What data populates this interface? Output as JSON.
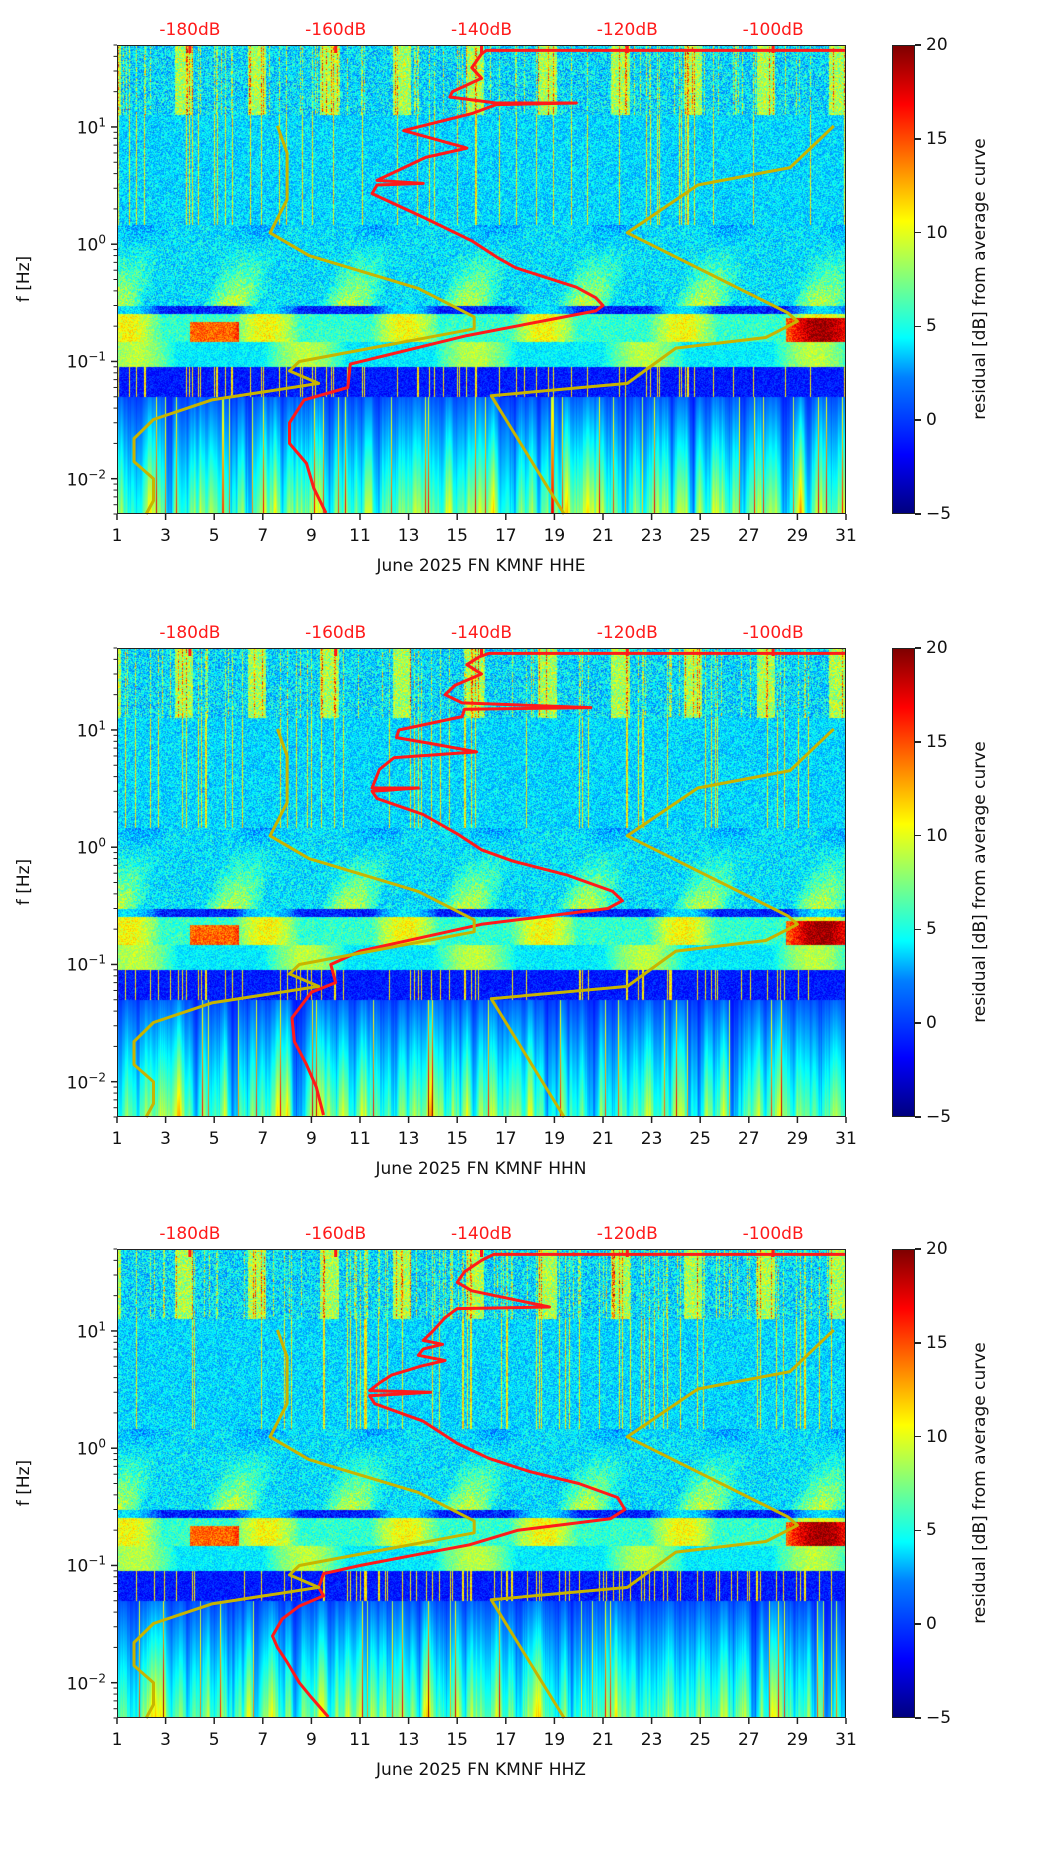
{
  "colors": {
    "avg_curve": "#ff1a1a",
    "noise_model": "#c8b400",
    "db_label": "#ff1a1a",
    "axis": "#222222"
  },
  "chart_data": [
    {
      "type": "heatmap",
      "title": "",
      "xlabel": "June 2025 FN KMNF  HHE",
      "ylabel": "f [Hz]",
      "xlim": [
        1,
        31
      ],
      "ylim": [
        0.005,
        50
      ],
      "yscale": "log",
      "x_ticks": [
        "1",
        "3",
        "5",
        "7",
        "9",
        "11",
        "13",
        "15",
        "17",
        "19",
        "21",
        "23",
        "25",
        "27",
        "29",
        "31"
      ],
      "y_ticks": [
        {
          "base": "10",
          "exp": "1",
          "value": 10
        },
        {
          "base": "10",
          "exp": "0",
          "value": 1
        },
        {
          "base": "10",
          "exp": "−1",
          "value": 0.1
        },
        {
          "base": "10",
          "exp": "−2",
          "value": 0.01
        }
      ],
      "top_axis": {
        "labels": [
          "-180dB",
          "-160dB",
          "-140dB",
          "-120dB",
          "-100dB"
        ],
        "positions_day": [
          4,
          10,
          16,
          22,
          28
        ]
      },
      "colorbar": {
        "label": "residual [dB] from average curve",
        "range": [
          -5,
          20
        ],
        "ticks": [
          "−5",
          "0",
          "5",
          "10",
          "15",
          "20"
        ],
        "colormap": "jet"
      },
      "series": [
        {
          "name": "average curve",
          "points": [
            [
              31,
              45
            ],
            [
              16.2,
              45
            ],
            [
              16.0,
              42
            ],
            [
              15.6,
              32
            ],
            [
              16.0,
              26
            ],
            [
              14.8,
              20
            ],
            [
              14.7,
              18
            ],
            [
              16.6,
              16
            ],
            [
              19.9,
              16
            ],
            [
              16.6,
              15.5
            ],
            [
              15.6,
              13
            ],
            [
              12.8,
              9.3
            ],
            [
              15.4,
              6.6
            ],
            [
              13.7,
              5.5
            ],
            [
              11.7,
              3.5
            ],
            [
              13.6,
              3.3
            ],
            [
              11.7,
              3.2
            ],
            [
              11.5,
              2.7
            ],
            [
              13.7,
              1.66
            ],
            [
              15.6,
              1.07
            ],
            [
              16.7,
              0.76
            ],
            [
              17.4,
              0.63
            ],
            [
              19.9,
              0.43
            ],
            [
              20.7,
              0.35
            ],
            [
              21.0,
              0.3
            ],
            [
              20.7,
              0.27
            ],
            [
              15.4,
              0.166
            ],
            [
              10.6,
              0.095
            ],
            [
              10.5,
              0.06
            ],
            [
              8.7,
              0.047
            ],
            [
              8.1,
              0.03
            ],
            [
              8.1,
              0.02
            ],
            [
              8.8,
              0.0135
            ],
            [
              9.1,
              0.0083
            ],
            [
              9.6,
              0.0051
            ]
          ]
        },
        {
          "name": "low noise model",
          "points": [
            [
              7.6,
              10.2
            ],
            [
              8.0,
              6.0
            ],
            [
              8.0,
              2.4
            ],
            [
              7.3,
              1.25
            ],
            [
              8.9,
              0.8
            ],
            [
              13.4,
              0.42
            ],
            [
              15.7,
              0.24
            ],
            [
              15.7,
              0.19
            ],
            [
              8.5,
              0.1
            ],
            [
              8.1,
              0.083
            ],
            [
              9.3,
              0.065
            ],
            [
              4.9,
              0.047
            ],
            [
              2.5,
              0.032
            ],
            [
              1.7,
              0.022
            ],
            [
              1.7,
              0.014
            ],
            [
              2.5,
              0.01
            ],
            [
              2.5,
              0.0065
            ],
            [
              2.2,
              0.005
            ]
          ]
        },
        {
          "name": "high noise model",
          "points": [
            [
              30.5,
              10.2
            ],
            [
              28.7,
              4.5
            ],
            [
              24.9,
              3.2
            ],
            [
              22.0,
              1.25
            ],
            [
              28.6,
              0.26
            ],
            [
              29.0,
              0.22
            ],
            [
              27.7,
              0.16
            ],
            [
              24.0,
              0.13
            ],
            [
              22.0,
              0.065
            ],
            [
              16.4,
              0.051
            ],
            [
              19.4,
              0.005
            ]
          ]
        }
      ]
    },
    {
      "type": "heatmap",
      "title": "",
      "xlabel": "June 2025 FN KMNF  HHN",
      "ylabel": "f [Hz]",
      "xlim": [
        1,
        31
      ],
      "ylim": [
        0.005,
        50
      ],
      "yscale": "log",
      "x_ticks": [
        "1",
        "3",
        "5",
        "7",
        "9",
        "11",
        "13",
        "15",
        "17",
        "19",
        "21",
        "23",
        "25",
        "27",
        "29",
        "31"
      ],
      "y_ticks": [
        {
          "base": "10",
          "exp": "1",
          "value": 10
        },
        {
          "base": "10",
          "exp": "0",
          "value": 1
        },
        {
          "base": "10",
          "exp": "−1",
          "value": 0.1
        },
        {
          "base": "10",
          "exp": "−2",
          "value": 0.01
        }
      ],
      "top_axis": {
        "labels": [
          "-180dB",
          "-160dB",
          "-140dB",
          "-120dB",
          "-100dB"
        ],
        "positions_day": [
          4,
          10,
          16,
          22,
          28
        ]
      },
      "colorbar": {
        "label": "residual [dB] from average curve",
        "range": [
          -5,
          20
        ],
        "ticks": [
          "−5",
          "0",
          "5",
          "10",
          "15",
          "20"
        ],
        "colormap": "jet"
      },
      "series": [
        {
          "name": "average curve",
          "points": [
            [
              31,
              45
            ],
            [
              16.3,
              45
            ],
            [
              15.9,
              42
            ],
            [
              15.4,
              36
            ],
            [
              16.0,
              30
            ],
            [
              14.9,
              24
            ],
            [
              14.5,
              20
            ],
            [
              15.2,
              17
            ],
            [
              20.5,
              15.5
            ],
            [
              15.3,
              15
            ],
            [
              15.2,
              13
            ],
            [
              12.6,
              10
            ],
            [
              12.5,
              8.6
            ],
            [
              14.0,
              7.6
            ],
            [
              15.8,
              6.5
            ],
            [
              12.4,
              5.8
            ],
            [
              11.8,
              4.6
            ],
            [
              11.5,
              3.2
            ],
            [
              13.4,
              3.2
            ],
            [
              11.5,
              3.0
            ],
            [
              11.7,
              2.6
            ],
            [
              13.6,
              1.9
            ],
            [
              15.0,
              1.3
            ],
            [
              16.0,
              0.95
            ],
            [
              17.3,
              0.76
            ],
            [
              19.5,
              0.58
            ],
            [
              21.4,
              0.42
            ],
            [
              21.8,
              0.35
            ],
            [
              21.2,
              0.3
            ],
            [
              16.0,
              0.22
            ],
            [
              11.0,
              0.13
            ],
            [
              9.8,
              0.1
            ],
            [
              10.0,
              0.07
            ],
            [
              9.0,
              0.058
            ],
            [
              8.2,
              0.035
            ],
            [
              8.3,
              0.022
            ],
            [
              8.8,
              0.014
            ],
            [
              9.2,
              0.009
            ],
            [
              9.5,
              0.0052
            ]
          ]
        },
        {
          "name": "low noise model",
          "points": [
            [
              7.6,
              10.2
            ],
            [
              8.0,
              6.0
            ],
            [
              8.0,
              2.4
            ],
            [
              7.3,
              1.25
            ],
            [
              8.9,
              0.8
            ],
            [
              13.4,
              0.42
            ],
            [
              15.7,
              0.24
            ],
            [
              15.7,
              0.19
            ],
            [
              8.5,
              0.1
            ],
            [
              8.1,
              0.083
            ],
            [
              9.3,
              0.065
            ],
            [
              4.9,
              0.047
            ],
            [
              2.5,
              0.032
            ],
            [
              1.7,
              0.022
            ],
            [
              1.7,
              0.014
            ],
            [
              2.5,
              0.01
            ],
            [
              2.5,
              0.0065
            ],
            [
              2.2,
              0.005
            ]
          ]
        },
        {
          "name": "high noise model",
          "points": [
            [
              30.5,
              10.2
            ],
            [
              28.7,
              4.5
            ],
            [
              24.9,
              3.2
            ],
            [
              22.0,
              1.25
            ],
            [
              28.6,
              0.26
            ],
            [
              29.0,
              0.22
            ],
            [
              27.7,
              0.16
            ],
            [
              24.0,
              0.13
            ],
            [
              22.0,
              0.065
            ],
            [
              16.4,
              0.051
            ],
            [
              19.4,
              0.005
            ]
          ]
        }
      ]
    },
    {
      "type": "heatmap",
      "title": "",
      "xlabel": "June 2025 FN KMNF  HHZ",
      "ylabel": "f [Hz]",
      "xlim": [
        1,
        31
      ],
      "ylim": [
        0.005,
        50
      ],
      "yscale": "log",
      "x_ticks": [
        "1",
        "3",
        "5",
        "7",
        "9",
        "11",
        "13",
        "15",
        "17",
        "19",
        "21",
        "23",
        "25",
        "27",
        "29",
        "31"
      ],
      "y_ticks": [
        {
          "base": "10",
          "exp": "1",
          "value": 10
        },
        {
          "base": "10",
          "exp": "0",
          "value": 1
        },
        {
          "base": "10",
          "exp": "−1",
          "value": 0.1
        },
        {
          "base": "10",
          "exp": "−2",
          "value": 0.01
        }
      ],
      "top_axis": {
        "labels": [
          "-180dB",
          "-160dB",
          "-140dB",
          "-120dB",
          "-100dB"
        ],
        "positions_day": [
          4,
          10,
          16,
          22,
          28
        ]
      },
      "colorbar": {
        "label": "residual [dB] from average curve",
        "range": [
          -5,
          20
        ],
        "ticks": [
          "−5",
          "0",
          "5",
          "10",
          "15",
          "20"
        ],
        "colormap": "jet"
      },
      "series": [
        {
          "name": "average curve",
          "points": [
            [
              31,
              45
            ],
            [
              16.5,
              45
            ],
            [
              16.0,
              40
            ],
            [
              15.3,
              32
            ],
            [
              15.0,
              26
            ],
            [
              15.6,
              22
            ],
            [
              18.8,
              16
            ],
            [
              15.0,
              15.5
            ],
            [
              14.5,
              13
            ],
            [
              14.0,
              10
            ],
            [
              13.6,
              8.3
            ],
            [
              14.4,
              7.7
            ],
            [
              13.6,
              7
            ],
            [
              13.4,
              6.2
            ],
            [
              14.5,
              5.6
            ],
            [
              13.5,
              5.0
            ],
            [
              12.3,
              4.2
            ],
            [
              11.8,
              3.6
            ],
            [
              11.4,
              3.1
            ],
            [
              13.9,
              3.0
            ],
            [
              11.4,
              2.8
            ],
            [
              11.6,
              2.4
            ],
            [
              13.6,
              1.7
            ],
            [
              15.0,
              1.1
            ],
            [
              16.3,
              0.82
            ],
            [
              18.0,
              0.63
            ],
            [
              20.0,
              0.5
            ],
            [
              21.6,
              0.38
            ],
            [
              21.9,
              0.3
            ],
            [
              21.3,
              0.25
            ],
            [
              17.5,
              0.2
            ],
            [
              15.5,
              0.15
            ],
            [
              13.0,
              0.12
            ],
            [
              11.0,
              0.1
            ],
            [
              9.5,
              0.085
            ],
            [
              9.3,
              0.065
            ],
            [
              9.5,
              0.055
            ],
            [
              8.5,
              0.045
            ],
            [
              7.8,
              0.035
            ],
            [
              7.4,
              0.025
            ],
            [
              7.6,
              0.02
            ],
            [
              8.0,
              0.015
            ],
            [
              8.5,
              0.01
            ],
            [
              9.0,
              0.0075
            ],
            [
              9.7,
              0.0051
            ]
          ]
        },
        {
          "name": "low noise model",
          "points": [
            [
              7.6,
              10.2
            ],
            [
              8.0,
              6.0
            ],
            [
              8.0,
              2.4
            ],
            [
              7.3,
              1.25
            ],
            [
              8.9,
              0.8
            ],
            [
              13.4,
              0.42
            ],
            [
              15.7,
              0.24
            ],
            [
              15.7,
              0.19
            ],
            [
              8.5,
              0.1
            ],
            [
              8.1,
              0.083
            ],
            [
              9.3,
              0.065
            ],
            [
              4.9,
              0.047
            ],
            [
              2.5,
              0.032
            ],
            [
              1.7,
              0.022
            ],
            [
              1.7,
              0.014
            ],
            [
              2.5,
              0.01
            ],
            [
              2.5,
              0.0065
            ],
            [
              2.2,
              0.005
            ]
          ]
        },
        {
          "name": "high noise model",
          "points": [
            [
              30.5,
              10.2
            ],
            [
              28.7,
              4.5
            ],
            [
              24.9,
              3.2
            ],
            [
              22.0,
              1.25
            ],
            [
              28.6,
              0.26
            ],
            [
              29.0,
              0.22
            ],
            [
              27.7,
              0.16
            ],
            [
              24.0,
              0.13
            ],
            [
              22.0,
              0.065
            ],
            [
              16.4,
              0.051
            ],
            [
              19.4,
              0.005
            ]
          ]
        }
      ]
    }
  ]
}
